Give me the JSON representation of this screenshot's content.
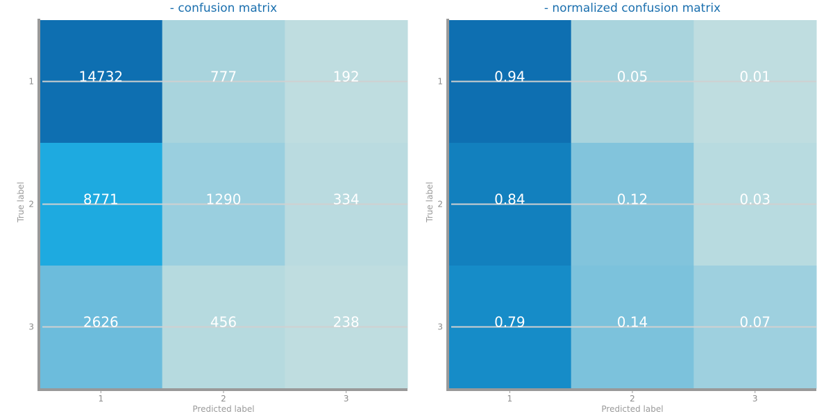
{
  "chart_data": [
    {
      "type": "heatmap",
      "title": "- confusion matrix",
      "xlabel": "Predicted label",
      "ylabel": "True label",
      "x_ticks": [
        "1",
        "2",
        "3"
      ],
      "y_ticks": [
        "1",
        "2",
        "3"
      ],
      "values": [
        [
          14732,
          777,
          192
        ],
        [
          8771,
          1290,
          334
        ],
        [
          2626,
          456,
          238
        ]
      ],
      "labels": [
        [
          "14732",
          "777",
          "192"
        ],
        [
          "8771",
          "1290",
          "334"
        ],
        [
          "2626",
          "456",
          "238"
        ]
      ],
      "colors": [
        [
          "#0e6fb1",
          "#a9d4dd",
          "#bfdde0"
        ],
        [
          "#1eaae0",
          "#9acfdf",
          "#badbe0"
        ],
        [
          "#6cbcdc",
          "#b6dadf",
          "#bfdde0"
        ]
      ],
      "grid": "horizontal lines at y ticks"
    },
    {
      "type": "heatmap",
      "title": "- normalized confusion matrix",
      "xlabel": "Predicted label",
      "ylabel": "True label",
      "x_ticks": [
        "1",
        "2",
        "3"
      ],
      "y_ticks": [
        "1",
        "2",
        "3"
      ],
      "values": [
        [
          0.94,
          0.05,
          0.01
        ],
        [
          0.84,
          0.12,
          0.03
        ],
        [
          0.79,
          0.14,
          0.07
        ]
      ],
      "labels": [
        [
          "0.94",
          "0.05",
          "0.01"
        ],
        [
          "0.84",
          "0.12",
          "0.03"
        ],
        [
          "0.79",
          "0.14",
          "0.07"
        ]
      ],
      "colors": [
        [
          "#0e6fb1",
          "#a9d4dd",
          "#bfdde0"
        ],
        [
          "#1280be",
          "#82c4dc",
          "#b8dbe0"
        ],
        [
          "#168cc8",
          "#7cc2dc",
          "#9ed0df"
        ]
      ],
      "grid": "horizontal lines at y ticks"
    }
  ],
  "style": {
    "axis_color": "#999999",
    "grid_color": "#d0d0d0",
    "title_color": "#1a6fae"
  }
}
